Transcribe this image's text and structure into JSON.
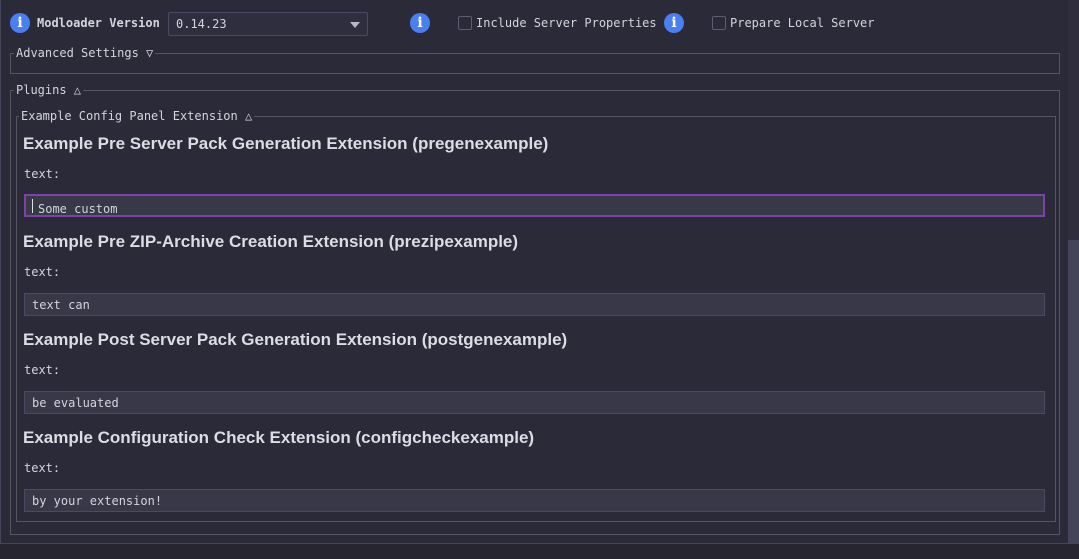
{
  "top": {
    "modloader_label": "Modloader Version",
    "modloader_value": "0.14.23",
    "include_server_properties": {
      "label": "Include Server Properties",
      "checked": false
    },
    "prepare_local_server": {
      "label": "Prepare Local Server",
      "checked": false
    },
    "info_glyph": "i"
  },
  "advanced": {
    "title": "Advanced Settings ▽"
  },
  "plugins": {
    "title": "Plugins △",
    "panel_title": "Example Config Panel Extension △",
    "extensions": [
      {
        "heading": "Example Pre Server Pack Generation Extension (pregenexample)",
        "label": "text:",
        "value": "Some custom"
      },
      {
        "heading": "Example Pre ZIP-Archive Creation Extension (prezipexample)",
        "label": "text:",
        "value": "text can"
      },
      {
        "heading": "Example Post Server Pack Generation Extension (postgenexample)",
        "label": "text:",
        "value": "be evaluated"
      },
      {
        "heading": "Example Configuration Check Extension (configcheckexample)",
        "label": "text:",
        "value": "by your extension!"
      }
    ]
  },
  "colors": {
    "accent_focus": "#7d42a6",
    "info": "#4a7ff0",
    "background": "#2b2a38"
  }
}
